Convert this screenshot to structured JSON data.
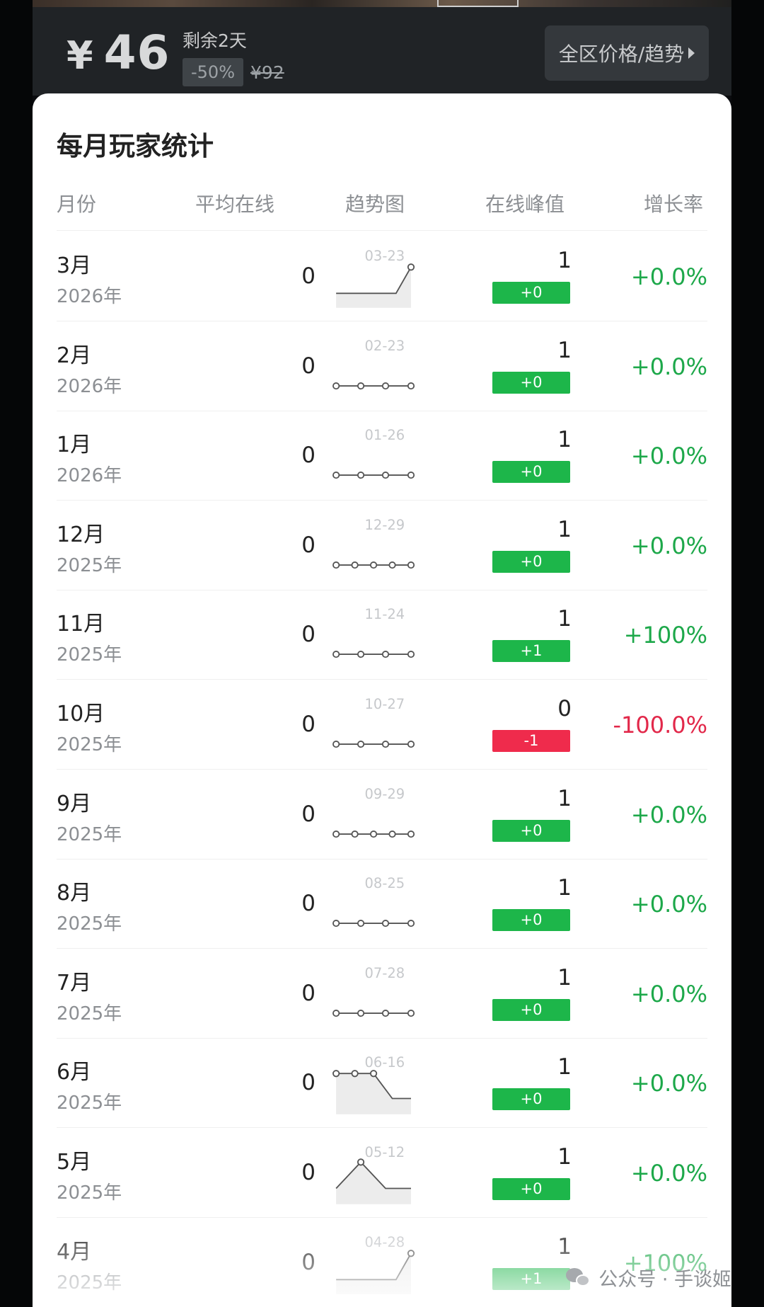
{
  "price_bar": {
    "currency": "¥",
    "price": "46",
    "remaining": "剩余2天",
    "discount": "-50%",
    "original_price": "¥92",
    "region_button": "全区价格/趋势"
  },
  "panel": {
    "title": "每月玩家统计",
    "columns": [
      "月份",
      "平均在线",
      "趋势图",
      "在线峰值",
      "增长率"
    ]
  },
  "rows": [
    {
      "month": "3月",
      "year": "2026年",
      "avg": "0",
      "date": "03-23",
      "peak": "1",
      "delta": "+0",
      "growth": "+0.0%",
      "trend": "up",
      "sentiment": "pos"
    },
    {
      "month": "2月",
      "year": "2026年",
      "avg": "0",
      "date": "02-23",
      "peak": "1",
      "delta": "+0",
      "growth": "+0.0%",
      "trend": "flat4",
      "sentiment": "pos"
    },
    {
      "month": "1月",
      "year": "2026年",
      "avg": "0",
      "date": "01-26",
      "peak": "1",
      "delta": "+0",
      "growth": "+0.0%",
      "trend": "flat4",
      "sentiment": "pos"
    },
    {
      "month": "12月",
      "year": "2025年",
      "avg": "0",
      "date": "12-29",
      "peak": "1",
      "delta": "+0",
      "growth": "+0.0%",
      "trend": "flat5",
      "sentiment": "pos"
    },
    {
      "month": "11月",
      "year": "2025年",
      "avg": "0",
      "date": "11-24",
      "peak": "1",
      "delta": "+1",
      "growth": "+100%",
      "trend": "flat4",
      "sentiment": "pos"
    },
    {
      "month": "10月",
      "year": "2025年",
      "avg": "0",
      "date": "10-27",
      "peak": "0",
      "delta": "-1",
      "growth": "-100.0%",
      "trend": "flat4",
      "sentiment": "neg"
    },
    {
      "month": "9月",
      "year": "2025年",
      "avg": "0",
      "date": "09-29",
      "peak": "1",
      "delta": "+0",
      "growth": "+0.0%",
      "trend": "flat5",
      "sentiment": "pos"
    },
    {
      "month": "8月",
      "year": "2025年",
      "avg": "0",
      "date": "08-25",
      "peak": "1",
      "delta": "+0",
      "growth": "+0.0%",
      "trend": "flat4",
      "sentiment": "pos"
    },
    {
      "month": "7月",
      "year": "2025年",
      "avg": "0",
      "date": "07-28",
      "peak": "1",
      "delta": "+0",
      "growth": "+0.0%",
      "trend": "flat4",
      "sentiment": "pos"
    },
    {
      "month": "6月",
      "year": "2025年",
      "avg": "0",
      "date": "06-16",
      "peak": "1",
      "delta": "+0",
      "growth": "+0.0%",
      "trend": "down",
      "sentiment": "pos"
    },
    {
      "month": "5月",
      "year": "2025年",
      "avg": "0",
      "date": "05-12",
      "peak": "1",
      "delta": "+0",
      "growth": "+0.0%",
      "trend": "peak",
      "sentiment": "pos"
    },
    {
      "month": "4月",
      "year": "2025年",
      "avg": "0",
      "date": "04-28",
      "peak": "1",
      "delta": "+1",
      "growth": "+100%",
      "trend": "up",
      "sentiment": "pos"
    }
  ],
  "watermark": "公众号 · 手谈姬"
}
